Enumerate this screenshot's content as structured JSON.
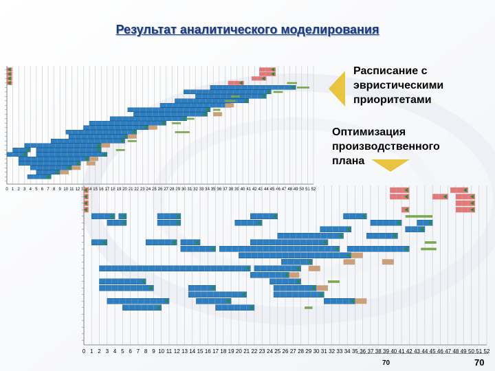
{
  "slide": {
    "title": "Результат аналитического моделирования",
    "caption_heuristic": "Расписание с\nэвристическими\nприоритетами",
    "caption_optimization": "Оптимизация\nпроизводственного\nплана",
    "page_number_small": "70",
    "page_number_large": "70"
  },
  "colors": {
    "bar": "#2f7fc0",
    "bar_edge": "#1c5d95",
    "setup": "#e07a7a",
    "tail": "#7aa84e",
    "wait": "#c9a07a",
    "marker": "#2e8a2e",
    "arrow": "#e8c440",
    "title": "#1a3a7a"
  },
  "chart_data": [
    {
      "type": "gantt",
      "name": "heuristic-schedule",
      "xlim": [
        0,
        52
      ],
      "x_ticks": [
        "0",
        "1",
        "2",
        "3",
        "4",
        "5",
        "6",
        "7",
        "8",
        "9",
        "10",
        "11",
        "12",
        "13",
        "14",
        "15",
        "16",
        "17",
        "18",
        "19",
        "20",
        "21",
        "22",
        "23",
        "24",
        "25",
        "26",
        "27",
        "28",
        "29",
        "30",
        "31",
        "32",
        "33",
        "34",
        "35",
        "36",
        "37",
        "38",
        "39",
        "40",
        "41",
        "42",
        "43",
        "44",
        "45",
        "46",
        "47",
        "48",
        "49",
        "50",
        "51",
        "52"
      ],
      "row_count": 26,
      "tasks": [
        {
          "row": 0,
          "start": 0,
          "end": 0.9,
          "kind": "setup"
        },
        {
          "row": 0,
          "start": 42.8,
          "end": 45.6,
          "kind": "setup"
        },
        {
          "row": 1,
          "start": 0,
          "end": 0.9,
          "kind": "setup"
        },
        {
          "row": 1,
          "start": 42.8,
          "end": 45.6,
          "kind": "setup"
        },
        {
          "row": 2,
          "start": 0,
          "end": 0.9,
          "kind": "setup"
        },
        {
          "row": 2,
          "start": 41.5,
          "end": 44.0,
          "kind": "setup"
        },
        {
          "row": 3,
          "start": 0,
          "end": 0.9,
          "kind": "setup"
        },
        {
          "row": 3,
          "start": 37.5,
          "end": 40.2,
          "kind": "setup"
        },
        {
          "row": 3,
          "start": 47.5,
          "end": 49.2,
          "kind": "tail"
        },
        {
          "row": 4,
          "start": 34.5,
          "end": 49.0,
          "kind": "bar"
        },
        {
          "row": 4,
          "start": 49.2,
          "end": 51.3,
          "kind": "tail"
        },
        {
          "row": 5,
          "start": 30.0,
          "end": 44.8,
          "kind": "bar"
        },
        {
          "row": 5,
          "start": 45.2,
          "end": 46.8,
          "kind": "tail"
        },
        {
          "row": 6,
          "start": 32.0,
          "end": 44.0,
          "kind": "bar"
        },
        {
          "row": 6,
          "start": 38.0,
          "end": 39.5,
          "kind": "tail"
        },
        {
          "row": 7,
          "start": 28.5,
          "end": 41.0,
          "kind": "bar"
        },
        {
          "row": 7,
          "start": 37.0,
          "end": 38.8,
          "kind": "tail"
        },
        {
          "row": 8,
          "start": 26.0,
          "end": 38.0,
          "kind": "bar"
        },
        {
          "row": 8,
          "start": 37.0,
          "end": 38.5,
          "kind": "wait"
        },
        {
          "row": 9,
          "start": 20.5,
          "end": 34.5,
          "kind": "bar"
        },
        {
          "row": 9,
          "start": 35.0,
          "end": 36.2,
          "kind": "tail"
        },
        {
          "row": 10,
          "start": 21.5,
          "end": 34.0,
          "kind": "bar"
        },
        {
          "row": 10,
          "start": 35.0,
          "end": 36.5,
          "kind": "wait"
        },
        {
          "row": 11,
          "start": 17.5,
          "end": 30.5,
          "kind": "bar"
        },
        {
          "row": 11,
          "start": 30.5,
          "end": 31.8,
          "kind": "tail"
        },
        {
          "row": 12,
          "start": 14.0,
          "end": 27.0,
          "kind": "bar"
        },
        {
          "row": 12,
          "start": 28.0,
          "end": 29.5,
          "kind": "tail"
        },
        {
          "row": 13,
          "start": 13.0,
          "end": 24.0,
          "kind": "bar"
        },
        {
          "row": 13,
          "start": 24.0,
          "end": 25.5,
          "kind": "wait"
        },
        {
          "row": 14,
          "start": 10.0,
          "end": 22.0,
          "kind": "bar"
        },
        {
          "row": 14,
          "start": 28.5,
          "end": 31.0,
          "kind": "tail"
        },
        {
          "row": 15,
          "start": 10.5,
          "end": 20.5,
          "kind": "bar"
        },
        {
          "row": 15,
          "start": 20.5,
          "end": 22.0,
          "kind": "wait"
        },
        {
          "row": 16,
          "start": 7.5,
          "end": 20.0,
          "kind": "bar"
        },
        {
          "row": 16,
          "start": 20.5,
          "end": 22.0,
          "kind": "tail"
        },
        {
          "row": 17,
          "start": 3.0,
          "end": 16.0,
          "kind": "bar"
        },
        {
          "row": 17,
          "start": 16.0,
          "end": 17.5,
          "kind": "wait"
        },
        {
          "row": 18,
          "start": 1.0,
          "end": 4.0,
          "kind": "bar"
        },
        {
          "row": 18,
          "start": 5.0,
          "end": 16.0,
          "kind": "bar"
        },
        {
          "row": 18,
          "start": 18.5,
          "end": 20.0,
          "kind": "tail"
        },
        {
          "row": 19,
          "start": 0,
          "end": 3.5,
          "kind": "bar"
        },
        {
          "row": 19,
          "start": 5.0,
          "end": 17.0,
          "kind": "bar"
        },
        {
          "row": 20,
          "start": 2.0,
          "end": 14.0,
          "kind": "bar"
        },
        {
          "row": 20,
          "start": 14.0,
          "end": 15.5,
          "kind": "wait"
        },
        {
          "row": 21,
          "start": 2.0,
          "end": 12.5,
          "kind": "bar"
        },
        {
          "row": 21,
          "start": 13.5,
          "end": 15.0,
          "kind": "wait"
        },
        {
          "row": 22,
          "start": 4.0,
          "end": 11.0,
          "kind": "bar"
        },
        {
          "row": 22,
          "start": 11.0,
          "end": 12.5,
          "kind": "wait"
        },
        {
          "row": 23,
          "start": 5.0,
          "end": 9.0,
          "kind": "bar"
        },
        {
          "row": 23,
          "start": 9.0,
          "end": 10.5,
          "kind": "wait"
        },
        {
          "row": 24,
          "start": 3.5,
          "end": 7.5,
          "kind": "bar"
        }
      ]
    },
    {
      "type": "gantt",
      "name": "optimized-schedule",
      "xlim": [
        0,
        52
      ],
      "x_ticks": [
        "0",
        "1",
        "2",
        "3",
        "4",
        "5",
        "6",
        "7",
        "8",
        "9",
        "10",
        "11",
        "12",
        "13",
        "14",
        "15",
        "16",
        "17",
        "18",
        "19",
        "20",
        "21",
        "22",
        "23",
        "24",
        "25",
        "26",
        "27",
        "28",
        "29",
        "30",
        "31",
        "32",
        "33",
        "34",
        "35",
        "36",
        "37",
        "38",
        "39",
        "40",
        "41",
        "42",
        "43",
        "44",
        "45",
        "46",
        "47",
        "48",
        "49",
        "50",
        "51",
        "52"
      ],
      "row_count": 24,
      "tasks": [
        {
          "row": 0,
          "start": 0,
          "end": 0.6,
          "kind": "setup"
        },
        {
          "row": 0,
          "start": 39.5,
          "end": 42.0,
          "kind": "setup"
        },
        {
          "row": 0,
          "start": 47.3,
          "end": 49.6,
          "kind": "setup"
        },
        {
          "row": 1,
          "start": 0,
          "end": 0.6,
          "kind": "setup"
        },
        {
          "row": 1,
          "start": 39.5,
          "end": 42.0,
          "kind": "setup"
        },
        {
          "row": 1,
          "start": 45.0,
          "end": 47.0,
          "kind": "setup"
        },
        {
          "row": 1,
          "start": 48.0,
          "end": 50.5,
          "kind": "setup"
        },
        {
          "row": 2,
          "start": 0,
          "end": 0.6,
          "kind": "setup"
        },
        {
          "row": 2,
          "start": 48.0,
          "end": 50.5,
          "kind": "setup"
        },
        {
          "row": 3,
          "start": 0,
          "end": 0.6,
          "kind": "setup"
        },
        {
          "row": 3,
          "start": 41.0,
          "end": 42.0,
          "kind": "setup"
        },
        {
          "row": 3,
          "start": 48.0,
          "end": 50.5,
          "kind": "setup"
        },
        {
          "row": 4,
          "start": 1.0,
          "end": 4.0,
          "kind": "bar"
        },
        {
          "row": 4,
          "start": 4.5,
          "end": 5.5,
          "kind": "bar"
        },
        {
          "row": 4,
          "start": 9.5,
          "end": 12.5,
          "kind": "bar"
        },
        {
          "row": 4,
          "start": 21.5,
          "end": 25.0,
          "kind": "bar"
        },
        {
          "row": 4,
          "start": 33.5,
          "end": 36.5,
          "kind": "bar"
        },
        {
          "row": 4,
          "start": 41.5,
          "end": 45.0,
          "kind": "tail"
        },
        {
          "row": 5,
          "start": 3.0,
          "end": 5.5,
          "kind": "bar"
        },
        {
          "row": 5,
          "start": 9.5,
          "end": 12.5,
          "kind": "bar"
        },
        {
          "row": 5,
          "start": 19.5,
          "end": 23.0,
          "kind": "bar"
        },
        {
          "row": 5,
          "start": 37.0,
          "end": 41.0,
          "kind": "bar"
        },
        {
          "row": 5,
          "start": 43.0,
          "end": 45.0,
          "kind": "bar"
        },
        {
          "row": 6,
          "start": 30.5,
          "end": 34.5,
          "kind": "bar"
        },
        {
          "row": 6,
          "start": 41.5,
          "end": 44.0,
          "kind": "bar"
        },
        {
          "row": 7,
          "start": 25.0,
          "end": 33.5,
          "kind": "bar"
        },
        {
          "row": 7,
          "start": 36.5,
          "end": 40.5,
          "kind": "bar"
        },
        {
          "row": 8,
          "start": 1.0,
          "end": 3.0,
          "kind": "bar"
        },
        {
          "row": 8,
          "start": 8.0,
          "end": 12.0,
          "kind": "bar"
        },
        {
          "row": 8,
          "start": 12.5,
          "end": 15.0,
          "kind": "bar"
        },
        {
          "row": 8,
          "start": 21.5,
          "end": 31.5,
          "kind": "bar"
        },
        {
          "row": 8,
          "start": 44.0,
          "end": 45.5,
          "kind": "tail"
        },
        {
          "row": 9,
          "start": 12.5,
          "end": 17.0,
          "kind": "bar"
        },
        {
          "row": 9,
          "start": 17.5,
          "end": 33.0,
          "kind": "bar"
        },
        {
          "row": 9,
          "start": 34.0,
          "end": 42.0,
          "kind": "bar"
        },
        {
          "row": 9,
          "start": 43.5,
          "end": 45.5,
          "kind": "tail"
        },
        {
          "row": 10,
          "start": 20.0,
          "end": 30.0,
          "kind": "bar"
        },
        {
          "row": 10,
          "start": 29.0,
          "end": 34.5,
          "kind": "bar"
        },
        {
          "row": 10,
          "start": 34.5,
          "end": 36.0,
          "kind": "wait"
        },
        {
          "row": 11,
          "start": 25.5,
          "end": 29.5,
          "kind": "bar"
        },
        {
          "row": 11,
          "start": 33.5,
          "end": 35.0,
          "kind": "wait"
        },
        {
          "row": 11,
          "start": 38.5,
          "end": 40.0,
          "kind": "wait"
        },
        {
          "row": 12,
          "start": 2.0,
          "end": 21.5,
          "kind": "bar"
        },
        {
          "row": 12,
          "start": 22.0,
          "end": 28.0,
          "kind": "bar"
        },
        {
          "row": 12,
          "start": 29.0,
          "end": 30.5,
          "kind": "wait"
        },
        {
          "row": 13,
          "start": 21.5,
          "end": 26.5,
          "kind": "bar"
        },
        {
          "row": 13,
          "start": 26.5,
          "end": 27.8,
          "kind": "wait"
        },
        {
          "row": 14,
          "start": 2.0,
          "end": 8.0,
          "kind": "bar"
        },
        {
          "row": 14,
          "start": 24.0,
          "end": 28.0,
          "kind": "bar"
        },
        {
          "row": 14,
          "start": 31.5,
          "end": 33.0,
          "kind": "tail"
        },
        {
          "row": 15,
          "start": 2.0,
          "end": 9.0,
          "kind": "bar"
        },
        {
          "row": 15,
          "start": 13.5,
          "end": 17.0,
          "kind": "bar"
        },
        {
          "row": 15,
          "start": 24.5,
          "end": 30.0,
          "kind": "bar"
        },
        {
          "row": 15,
          "start": 30.0,
          "end": 31.5,
          "kind": "wait"
        },
        {
          "row": 16,
          "start": 13.5,
          "end": 21.0,
          "kind": "bar"
        },
        {
          "row": 16,
          "start": 24.5,
          "end": 31.0,
          "kind": "bar"
        },
        {
          "row": 17,
          "start": 3.0,
          "end": 11.0,
          "kind": "bar"
        },
        {
          "row": 17,
          "start": 14.5,
          "end": 19.0,
          "kind": "bar"
        },
        {
          "row": 17,
          "start": 31.0,
          "end": 35.0,
          "kind": "bar"
        },
        {
          "row": 17,
          "start": 35.0,
          "end": 36.5,
          "kind": "wait"
        },
        {
          "row": 18,
          "start": 5.0,
          "end": 10.0,
          "kind": "bar"
        },
        {
          "row": 18,
          "start": 17.0,
          "end": 22.0,
          "kind": "bar"
        },
        {
          "row": 18,
          "start": 28.5,
          "end": 29.5,
          "kind": "tail"
        }
      ]
    }
  ]
}
